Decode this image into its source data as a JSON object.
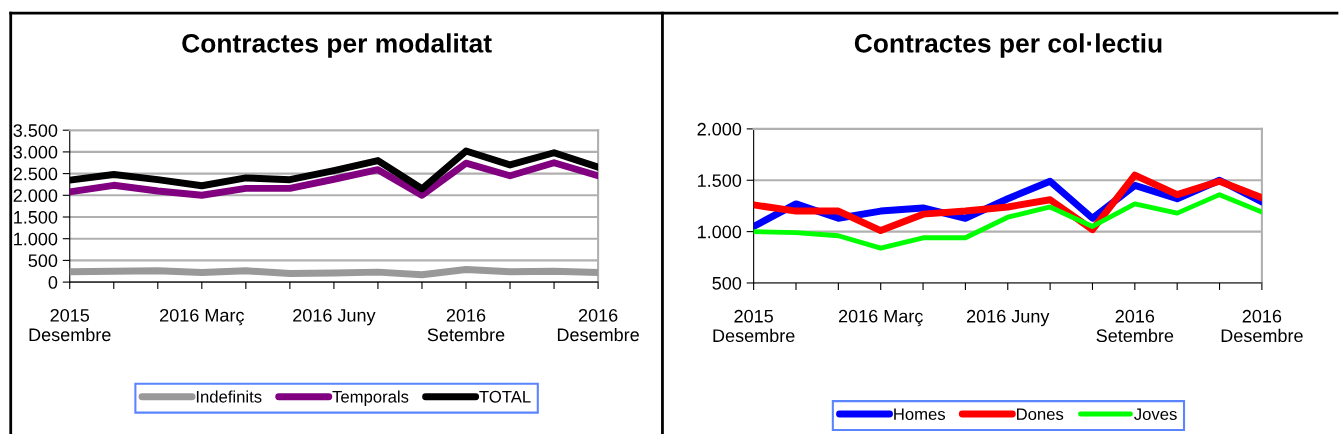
{
  "chart_data": [
    {
      "type": "line",
      "title": "Contractes per modalitat",
      "categories": [
        "2015\nDesembre",
        null,
        null,
        "2016 Març",
        null,
        null,
        "2016 Juny",
        null,
        null,
        "2016\nSetembre",
        null,
        null,
        "2016\nDesembre"
      ],
      "series": [
        {
          "name": "Indefinits",
          "color": "#999999",
          "values": [
            240,
            250,
            260,
            220,
            260,
            200,
            210,
            230,
            170,
            290,
            240,
            250,
            220
          ]
        },
        {
          "name": "Temporals",
          "color": "#800080",
          "values": [
            2080,
            2230,
            2100,
            2000,
            2160,
            2160,
            2370,
            2590,
            2000,
            2740,
            2450,
            2750,
            2450
          ]
        },
        {
          "name": "TOTAL",
          "color": "#000000",
          "values": [
            2350,
            2480,
            2360,
            2220,
            2400,
            2360,
            2570,
            2800,
            2150,
            3020,
            2700,
            2980,
            2650
          ]
        }
      ],
      "ylim": [
        0,
        3500
      ],
      "yticks": [
        {
          "value": 0,
          "label": "0"
        },
        {
          "value": 500,
          "label": "500"
        },
        {
          "value": 1000,
          "label": "1.000"
        },
        {
          "value": 1500,
          "label": "1.500"
        },
        {
          "value": 2000,
          "label": "2.000"
        },
        {
          "value": 2500,
          "label": "2.500"
        },
        {
          "value": 3000,
          "label": "3.000"
        },
        {
          "value": 3500,
          "label": "3.500"
        }
      ],
      "grid": "y",
      "legend": "bottom",
      "marker": "none",
      "line_style": "solid"
    },
    {
      "type": "line",
      "title": "Contractes per col·lectiu",
      "categories": [
        "2015\nDesembre",
        null,
        null,
        "2016 Març",
        null,
        null,
        "2016 Juny",
        null,
        null,
        "2016\nSetembre",
        null,
        null,
        "2016\nDesembre"
      ],
      "series": [
        {
          "name": "Homes",
          "color": "#0000ff",
          "values": [
            1050,
            1270,
            1130,
            1200,
            1230,
            1130,
            1320,
            1490,
            1130,
            1450,
            1320,
            1500,
            1290
          ]
        },
        {
          "name": "Dones",
          "color": "#ff0000",
          "values": [
            1260,
            1200,
            1200,
            1010,
            1170,
            1200,
            1240,
            1310,
            1020,
            1550,
            1360,
            1490,
            1330
          ]
        },
        {
          "name": "Joves",
          "color": "#00ff00",
          "values": [
            1000,
            990,
            960,
            840,
            940,
            940,
            1140,
            1240,
            1050,
            1270,
            1180,
            1360,
            1190
          ]
        }
      ],
      "ylim": [
        500,
        2000
      ],
      "yticks": [
        {
          "value": 500,
          "label": "500"
        },
        {
          "value": 1000,
          "label": "1.000"
        },
        {
          "value": 1500,
          "label": "1.500"
        },
        {
          "value": 2000,
          "label": "2.000"
        }
      ],
      "grid": "y",
      "legend": "bottom",
      "marker": "none",
      "line_style": "solid"
    }
  ]
}
